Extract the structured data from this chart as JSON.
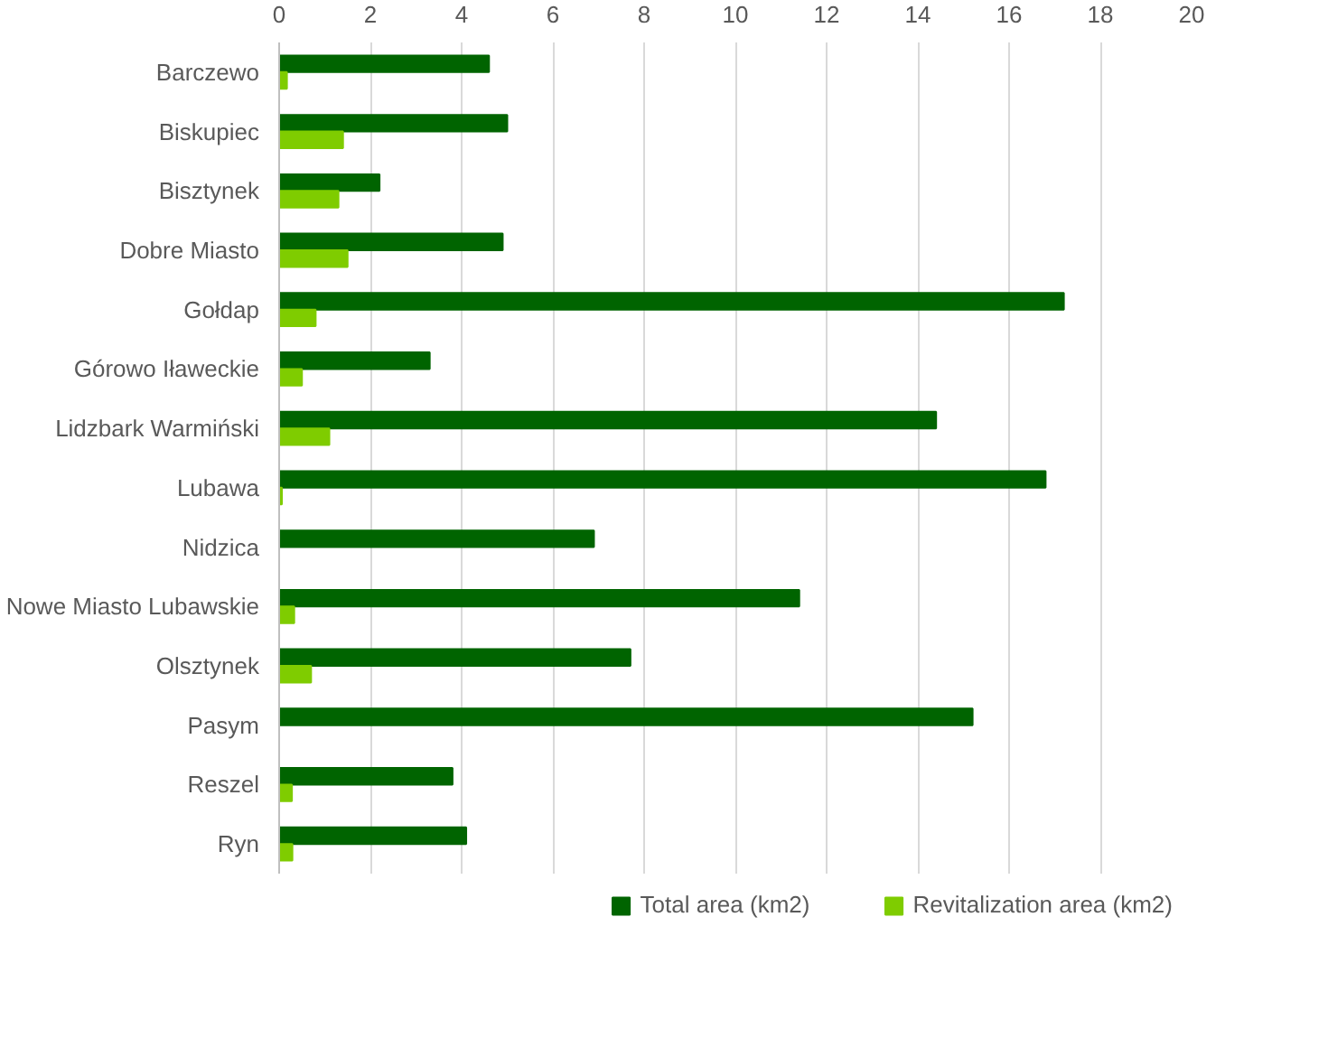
{
  "chart_data": {
    "type": "bar",
    "orientation": "horizontal",
    "categories": [
      "Barczewo",
      "Biskupiec",
      "Bisztynek",
      "Dobre Miasto",
      "Gołdap",
      "Górowo Iławeckie",
      "Lidzbark Warmiński",
      "Lubawa",
      "Nidzica",
      "Nowe Miasto Lubawskie",
      "Olsztynek",
      "Pasym",
      "Reszel",
      "Ryn"
    ],
    "series": [
      {
        "name": "Total area (km2)",
        "color": "#006400",
        "values": [
          4.6,
          5.0,
          2.2,
          4.9,
          17.2,
          3.3,
          14.4,
          16.8,
          6.9,
          11.4,
          7.7,
          15.2,
          3.8,
          4.1
        ]
      },
      {
        "name": "Revitalization area (km2)",
        "color": "#7fcc00",
        "values": [
          0.17,
          1.4,
          1.3,
          1.5,
          0.8,
          0.5,
          1.1,
          0.06,
          null,
          0.33,
          0.7,
          null,
          0.28,
          0.29
        ]
      }
    ],
    "xlim": [
      0,
      20
    ],
    "xticks": [
      0,
      2,
      4,
      6,
      8,
      10,
      12,
      14,
      16,
      18,
      20
    ],
    "grid": "x",
    "legend": "bottom"
  }
}
